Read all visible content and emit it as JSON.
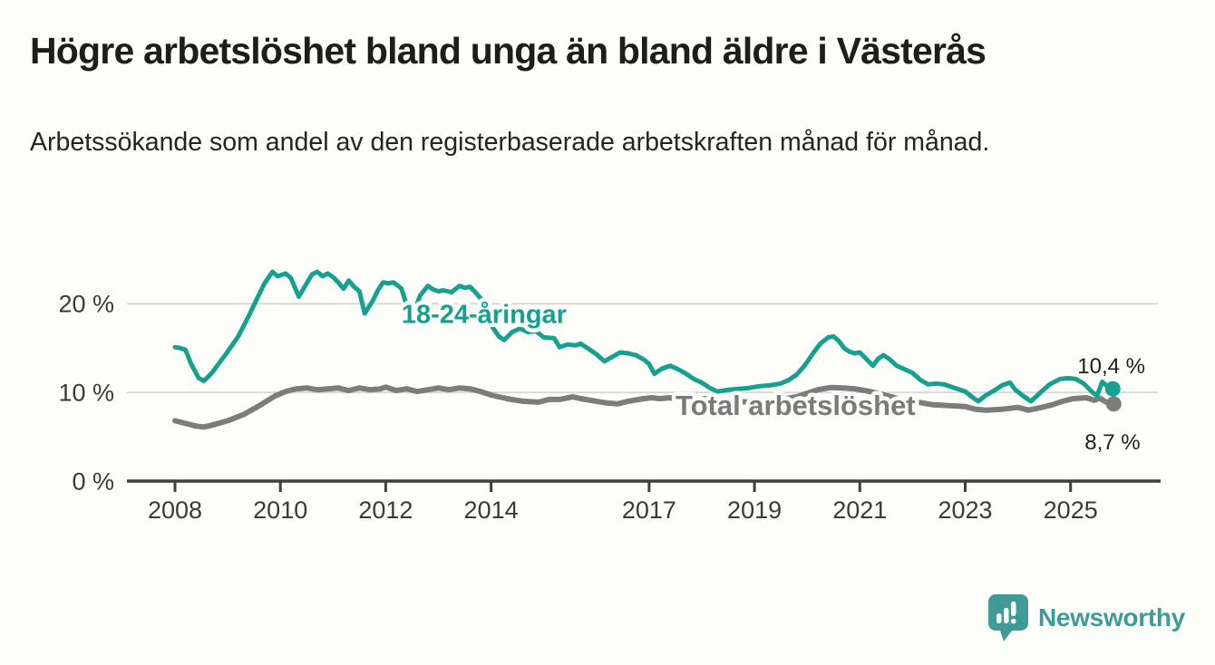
{
  "header": {
    "title": "Högre arbetslöshet bland unga än bland äldre i Västerås",
    "subtitle": "Arbetssökande som andel av den registerbaserade arbetskraften månad för månad."
  },
  "footer": {
    "brand": "Newsworthy"
  },
  "colors": {
    "youth": "#16a08f",
    "total": "#7c7c7c",
    "text": "#1e1e1c",
    "tick_text": "#3a3a3a",
    "grid": "#d9d9d7",
    "axis": "#3f3f3f",
    "background": "#fdfdfa",
    "logo": "#3f9b95"
  },
  "chart_data": {
    "type": "line",
    "title": "Högre arbetslöshet bland unga än bland äldre i Västerås",
    "subtitle": "Arbetssökande som andel av den registerbaserade arbetskraften månad för månad.",
    "grid": "horizontal",
    "x_axis": {
      "ticks": [
        2008,
        2010,
        2012,
        2014,
        2017,
        2019,
        2021,
        2023,
        2025
      ],
      "min": 2007.1,
      "max": 2026.7
    },
    "y_axis": {
      "unit": "%",
      "min": 0,
      "max": 26,
      "ticks": [
        {
          "value": 0,
          "label": "0 %"
        },
        {
          "value": 10,
          "label": "10 %"
        },
        {
          "value": 20,
          "label": "20 %"
        }
      ]
    },
    "series": [
      {
        "label": "18-24-åringar",
        "color": "#16a08f",
        "end_label": "10,4 %",
        "end_value": 10.4,
        "label_pos": [
          2012.3,
          17.8
        ],
        "points": [
          [
            2008.0,
            15.1
          ],
          [
            2008.1,
            15.0
          ],
          [
            2008.2,
            14.8
          ],
          [
            2008.3,
            13.3
          ],
          [
            2008.45,
            11.6
          ],
          [
            2008.55,
            11.3
          ],
          [
            2008.7,
            12.2
          ],
          [
            2008.85,
            13.4
          ],
          [
            2009.0,
            14.6
          ],
          [
            2009.2,
            16.3
          ],
          [
            2009.4,
            18.6
          ],
          [
            2009.55,
            20.5
          ],
          [
            2009.7,
            22.3
          ],
          [
            2009.85,
            23.6
          ],
          [
            2009.95,
            23.1
          ],
          [
            2010.1,
            23.4
          ],
          [
            2010.2,
            22.9
          ],
          [
            2010.35,
            20.8
          ],
          [
            2010.5,
            22.3
          ],
          [
            2010.6,
            23.3
          ],
          [
            2010.7,
            23.6
          ],
          [
            2010.8,
            23.1
          ],
          [
            2010.9,
            23.4
          ],
          [
            2011.0,
            23.0
          ],
          [
            2011.1,
            22.4
          ],
          [
            2011.2,
            21.7
          ],
          [
            2011.3,
            22.6
          ],
          [
            2011.4,
            21.9
          ],
          [
            2011.5,
            21.4
          ],
          [
            2011.6,
            18.9
          ],
          [
            2011.75,
            20.3
          ],
          [
            2011.85,
            21.5
          ],
          [
            2011.95,
            22.4
          ],
          [
            2012.05,
            22.3
          ],
          [
            2012.15,
            22.4
          ],
          [
            2012.3,
            21.7
          ],
          [
            2012.4,
            19.8
          ],
          [
            2012.5,
            18.3
          ],
          [
            2012.65,
            20.9
          ],
          [
            2012.8,
            22.0
          ],
          [
            2012.9,
            21.6
          ],
          [
            2013.0,
            21.4
          ],
          [
            2013.1,
            21.5
          ],
          [
            2013.25,
            21.3
          ],
          [
            2013.4,
            22.0
          ],
          [
            2013.5,
            21.8
          ],
          [
            2013.6,
            21.9
          ],
          [
            2013.7,
            21.3
          ],
          [
            2013.8,
            20.6
          ],
          [
            2013.9,
            18.9
          ],
          [
            2014.0,
            17.6
          ],
          [
            2014.15,
            16.3
          ],
          [
            2014.25,
            15.9
          ],
          [
            2014.4,
            16.8
          ],
          [
            2014.55,
            17.2
          ],
          [
            2014.7,
            16.8
          ],
          [
            2014.85,
            16.9
          ],
          [
            2015.0,
            16.2
          ],
          [
            2015.2,
            16.1
          ],
          [
            2015.3,
            15.1
          ],
          [
            2015.45,
            15.4
          ],
          [
            2015.6,
            15.3
          ],
          [
            2015.7,
            15.5
          ],
          [
            2015.85,
            14.9
          ],
          [
            2016.0,
            14.3
          ],
          [
            2016.15,
            13.5
          ],
          [
            2016.3,
            14.0
          ],
          [
            2016.45,
            14.5
          ],
          [
            2016.6,
            14.4
          ],
          [
            2016.75,
            14.2
          ],
          [
            2016.9,
            13.7
          ],
          [
            2017.0,
            13.2
          ],
          [
            2017.1,
            12.1
          ],
          [
            2017.25,
            12.7
          ],
          [
            2017.4,
            13.0
          ],
          [
            2017.55,
            12.6
          ],
          [
            2017.7,
            12.1
          ],
          [
            2017.85,
            11.5
          ],
          [
            2018.0,
            11.1
          ],
          [
            2018.15,
            10.5
          ],
          [
            2018.3,
            10.1
          ],
          [
            2018.5,
            10.3
          ],
          [
            2018.7,
            10.4
          ],
          [
            2018.9,
            10.5
          ],
          [
            2019.1,
            10.7
          ],
          [
            2019.3,
            10.8
          ],
          [
            2019.5,
            11.0
          ],
          [
            2019.65,
            11.4
          ],
          [
            2019.8,
            12.0
          ],
          [
            2019.95,
            13.0
          ],
          [
            2020.1,
            14.3
          ],
          [
            2020.25,
            15.5
          ],
          [
            2020.4,
            16.2
          ],
          [
            2020.5,
            16.3
          ],
          [
            2020.6,
            15.8
          ],
          [
            2020.7,
            15.0
          ],
          [
            2020.8,
            14.6
          ],
          [
            2020.9,
            14.4
          ],
          [
            2021.0,
            14.5
          ],
          [
            2021.1,
            13.9
          ],
          [
            2021.25,
            13.0
          ],
          [
            2021.35,
            13.8
          ],
          [
            2021.45,
            14.2
          ],
          [
            2021.55,
            13.8
          ],
          [
            2021.7,
            13.0
          ],
          [
            2021.85,
            12.6
          ],
          [
            2022.0,
            12.2
          ],
          [
            2022.15,
            11.4
          ],
          [
            2022.3,
            10.9
          ],
          [
            2022.45,
            11.0
          ],
          [
            2022.6,
            10.9
          ],
          [
            2022.8,
            10.5
          ],
          [
            2023.0,
            10.1
          ],
          [
            2023.15,
            9.4
          ],
          [
            2023.25,
            9.0
          ],
          [
            2023.4,
            9.7
          ],
          [
            2023.55,
            10.2
          ],
          [
            2023.7,
            10.8
          ],
          [
            2023.85,
            11.1
          ],
          [
            2023.95,
            10.3
          ],
          [
            2024.1,
            9.6
          ],
          [
            2024.25,
            9.0
          ],
          [
            2024.45,
            10.1
          ],
          [
            2024.6,
            10.9
          ],
          [
            2024.8,
            11.5
          ],
          [
            2024.95,
            11.6
          ],
          [
            2025.1,
            11.5
          ],
          [
            2025.25,
            11.0
          ],
          [
            2025.4,
            10.1
          ],
          [
            2025.5,
            9.6
          ],
          [
            2025.6,
            11.2
          ],
          [
            2025.75,
            10.4
          ]
        ]
      },
      {
        "label": "Total arbetslöshet",
        "color": "#7c7c7c",
        "end_label": "8,7 %",
        "end_value": 8.7,
        "label_pos": [
          2017.5,
          7.45
        ],
        "points": [
          [
            2008.0,
            6.8
          ],
          [
            2008.2,
            6.5
          ],
          [
            2008.4,
            6.2
          ],
          [
            2008.55,
            6.1
          ],
          [
            2008.7,
            6.3
          ],
          [
            2009.0,
            6.8
          ],
          [
            2009.3,
            7.5
          ],
          [
            2009.6,
            8.5
          ],
          [
            2009.9,
            9.6
          ],
          [
            2010.1,
            10.1
          ],
          [
            2010.3,
            10.4
          ],
          [
            2010.5,
            10.5
          ],
          [
            2010.7,
            10.3
          ],
          [
            2010.9,
            10.4
          ],
          [
            2011.1,
            10.5
          ],
          [
            2011.3,
            10.2
          ],
          [
            2011.5,
            10.5
          ],
          [
            2011.7,
            10.3
          ],
          [
            2011.9,
            10.4
          ],
          [
            2012.0,
            10.6
          ],
          [
            2012.2,
            10.2
          ],
          [
            2012.4,
            10.4
          ],
          [
            2012.6,
            10.1
          ],
          [
            2012.8,
            10.3
          ],
          [
            2013.0,
            10.5
          ],
          [
            2013.2,
            10.3
          ],
          [
            2013.4,
            10.5
          ],
          [
            2013.6,
            10.4
          ],
          [
            2013.8,
            10.1
          ],
          [
            2014.0,
            9.7
          ],
          [
            2014.3,
            9.3
          ],
          [
            2014.6,
            9.0
          ],
          [
            2014.9,
            8.9
          ],
          [
            2015.1,
            9.2
          ],
          [
            2015.3,
            9.2
          ],
          [
            2015.55,
            9.5
          ],
          [
            2015.7,
            9.3
          ],
          [
            2016.0,
            9.0
          ],
          [
            2016.2,
            8.8
          ],
          [
            2016.4,
            8.7
          ],
          [
            2016.6,
            9.0
          ],
          [
            2016.9,
            9.3
          ],
          [
            2017.05,
            9.4
          ],
          [
            2017.2,
            9.3
          ],
          [
            2017.4,
            9.4
          ],
          [
            2017.6,
            9.1
          ],
          [
            2017.75,
            9.0
          ],
          [
            2017.9,
            9.2
          ],
          [
            2018.05,
            9.3
          ],
          [
            2018.3,
            9.1
          ],
          [
            2018.6,
            9.0
          ],
          [
            2018.9,
            8.9
          ],
          [
            2019.2,
            9.0
          ],
          [
            2019.5,
            9.2
          ],
          [
            2019.8,
            9.5
          ],
          [
            2020.0,
            9.9
          ],
          [
            2020.2,
            10.3
          ],
          [
            2020.45,
            10.55
          ],
          [
            2020.7,
            10.5
          ],
          [
            2020.9,
            10.4
          ],
          [
            2021.1,
            10.2
          ],
          [
            2021.35,
            9.9
          ],
          [
            2021.6,
            9.5
          ],
          [
            2021.85,
            9.1
          ],
          [
            2022.1,
            8.9
          ],
          [
            2022.4,
            8.6
          ],
          [
            2022.7,
            8.5
          ],
          [
            2023.0,
            8.4
          ],
          [
            2023.2,
            8.1
          ],
          [
            2023.4,
            8.0
          ],
          [
            2023.7,
            8.1
          ],
          [
            2024.0,
            8.3
          ],
          [
            2024.2,
            8.0
          ],
          [
            2024.45,
            8.3
          ],
          [
            2024.65,
            8.6
          ],
          [
            2024.85,
            9.0
          ],
          [
            2025.05,
            9.3
          ],
          [
            2025.3,
            9.4
          ],
          [
            2025.45,
            9.1
          ],
          [
            2025.55,
            9.35
          ],
          [
            2025.65,
            9.0
          ],
          [
            2025.75,
            8.7
          ]
        ]
      }
    ]
  }
}
